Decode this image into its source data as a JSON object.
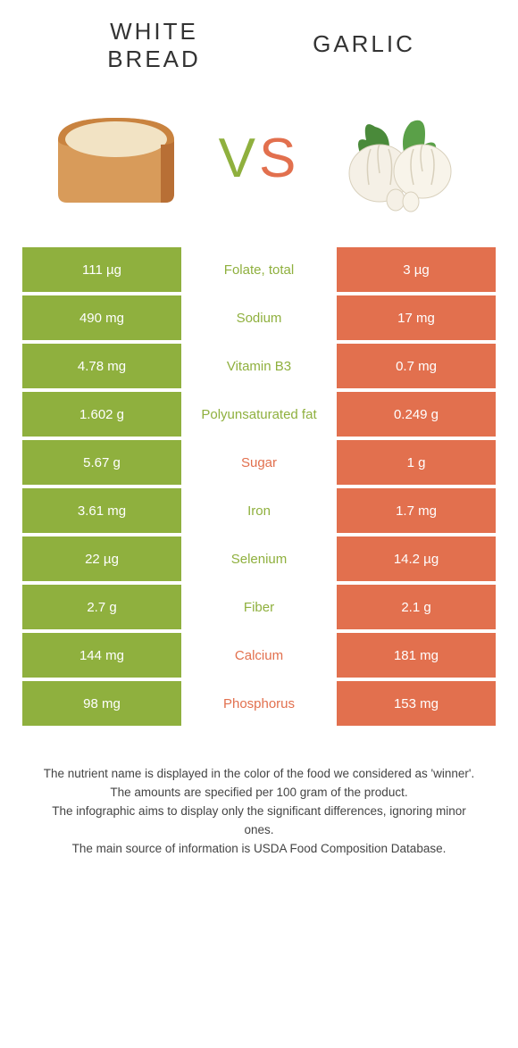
{
  "colors": {
    "left": "#8fb03e",
    "right": "#e2704e",
    "vs_v": "#8fb03e",
    "vs_s": "#e2704e"
  },
  "header": {
    "left_line1": "WHITE",
    "left_line2": "BREAD",
    "right": "GARLIC",
    "vs_v": "V",
    "vs_s": "S"
  },
  "rows": [
    {
      "left": "111 µg",
      "label": "Folate, total",
      "right": "3 µg",
      "winner": "left"
    },
    {
      "left": "490 mg",
      "label": "Sodium",
      "right": "17 mg",
      "winner": "left"
    },
    {
      "left": "4.78 mg",
      "label": "Vitamin B3",
      "right": "0.7 mg",
      "winner": "left"
    },
    {
      "left": "1.602 g",
      "label": "Polyunsaturated fat",
      "right": "0.249 g",
      "winner": "left"
    },
    {
      "left": "5.67 g",
      "label": "Sugar",
      "right": "1 g",
      "winner": "right"
    },
    {
      "left": "3.61 mg",
      "label": "Iron",
      "right": "1.7 mg",
      "winner": "left"
    },
    {
      "left": "22 µg",
      "label": "Selenium",
      "right": "14.2 µg",
      "winner": "left"
    },
    {
      "left": "2.7 g",
      "label": "Fiber",
      "right": "2.1 g",
      "winner": "left"
    },
    {
      "left": "144 mg",
      "label": "Calcium",
      "right": "181 mg",
      "winner": "right"
    },
    {
      "left": "98 mg",
      "label": "Phosphorus",
      "right": "153 mg",
      "winner": "right"
    }
  ],
  "footer": {
    "l1": "The nutrient name is displayed in the color of the food we considered as 'winner'.",
    "l2": "The amounts are specified per 100 gram of the product.",
    "l3": "The infographic aims to display only the significant differences, ignoring minor ones.",
    "l4": "The main source of information is USDA Food Composition Database."
  }
}
